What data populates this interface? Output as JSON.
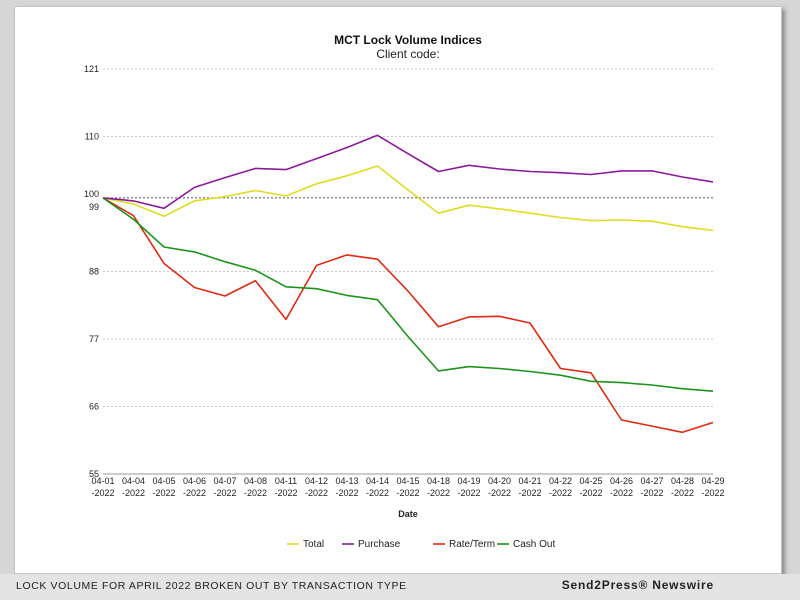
{
  "chart_data": {
    "type": "line",
    "title": "MCT Lock Volume Indices",
    "subtitle": "Client code:",
    "xlabel": "Date",
    "ylabel": "",
    "ylim": [
      55,
      121
    ],
    "yticks": [
      {
        "value": 121,
        "label": "121"
      },
      {
        "value": 110,
        "label": "110"
      },
      {
        "value": 100,
        "label": "100"
      },
      {
        "value": 99,
        "label": "99"
      },
      {
        "value": 88,
        "label": "88"
      },
      {
        "value": 77,
        "label": "77"
      },
      {
        "value": 66,
        "label": "66"
      },
      {
        "value": 55,
        "label": "55"
      }
    ],
    "reference_line": 100,
    "grid": true,
    "legend_position": "bottom",
    "categories": [
      [
        "04-01",
        "-2022"
      ],
      [
        "04-04",
        "-2022"
      ],
      [
        "04-05",
        "-2022"
      ],
      [
        "04-06",
        "-2022"
      ],
      [
        "04-07",
        "-2022"
      ],
      [
        "04-08",
        "-2022"
      ],
      [
        "04-11",
        "-2022"
      ],
      [
        "04-12",
        "-2022"
      ],
      [
        "04-13",
        "-2022"
      ],
      [
        "04-14",
        "-2022"
      ],
      [
        "04-15",
        "-2022"
      ],
      [
        "04-18",
        "-2022"
      ],
      [
        "04-19",
        "-2022"
      ],
      [
        "04-20",
        "-2022"
      ],
      [
        "04-21",
        "-2022"
      ],
      [
        "04-22",
        "-2022"
      ],
      [
        "04-25",
        "-2022"
      ],
      [
        "04-26",
        "-2022"
      ],
      [
        "04-27",
        "-2022"
      ],
      [
        "04-28",
        "-2022"
      ],
      [
        "04-29",
        "-2022"
      ]
    ],
    "series": [
      {
        "name": "Total",
        "color": "#dddd22",
        "values": [
          100,
          99,
          97,
          99.5,
          100.2,
          101.2,
          100.3,
          102.3,
          103.6,
          105.2,
          101.3,
          97.5,
          98.8,
          98.2,
          97.5,
          96.8,
          96.3,
          96.4,
          96.2,
          95.3,
          94.7
        ]
      },
      {
        "name": "Purchase",
        "color": "#8b1a9b",
        "values": [
          100,
          99.5,
          98.3,
          101.7,
          103.3,
          104.8,
          104.6,
          106.4,
          108.2,
          110.2,
          107.2,
          104.3,
          105.3,
          104.7,
          104.3,
          104.1,
          103.8,
          104.4,
          104.4,
          103.4,
          102.6
        ]
      },
      {
        "name": "Rate/Term",
        "color": "#e02a12",
        "values": [
          100,
          97.1,
          89.3,
          85.4,
          84.0,
          86.5,
          80.2,
          89.0,
          90.7,
          90.0,
          84.8,
          79.0,
          80.6,
          80.7,
          79.6,
          72.2,
          71.5,
          63.8,
          62.8,
          61.8,
          63.4
        ]
      },
      {
        "name": "Cash Out",
        "color": "#1c941c",
        "values": [
          100,
          96.5,
          92.0,
          91.2,
          89.6,
          88.2,
          85.5,
          85.2,
          84.1,
          83.4,
          77.4,
          71.8,
          72.5,
          72.2,
          71.7,
          71.1,
          70.1,
          69.9,
          69.5,
          68.9,
          68.5
        ]
      }
    ]
  },
  "footer": {
    "caption": "LOCK VOLUME FOR APRIL 2022 BROKEN OUT BY TRANSACTION TYPE",
    "brand": "Send2Press® Newswire"
  }
}
